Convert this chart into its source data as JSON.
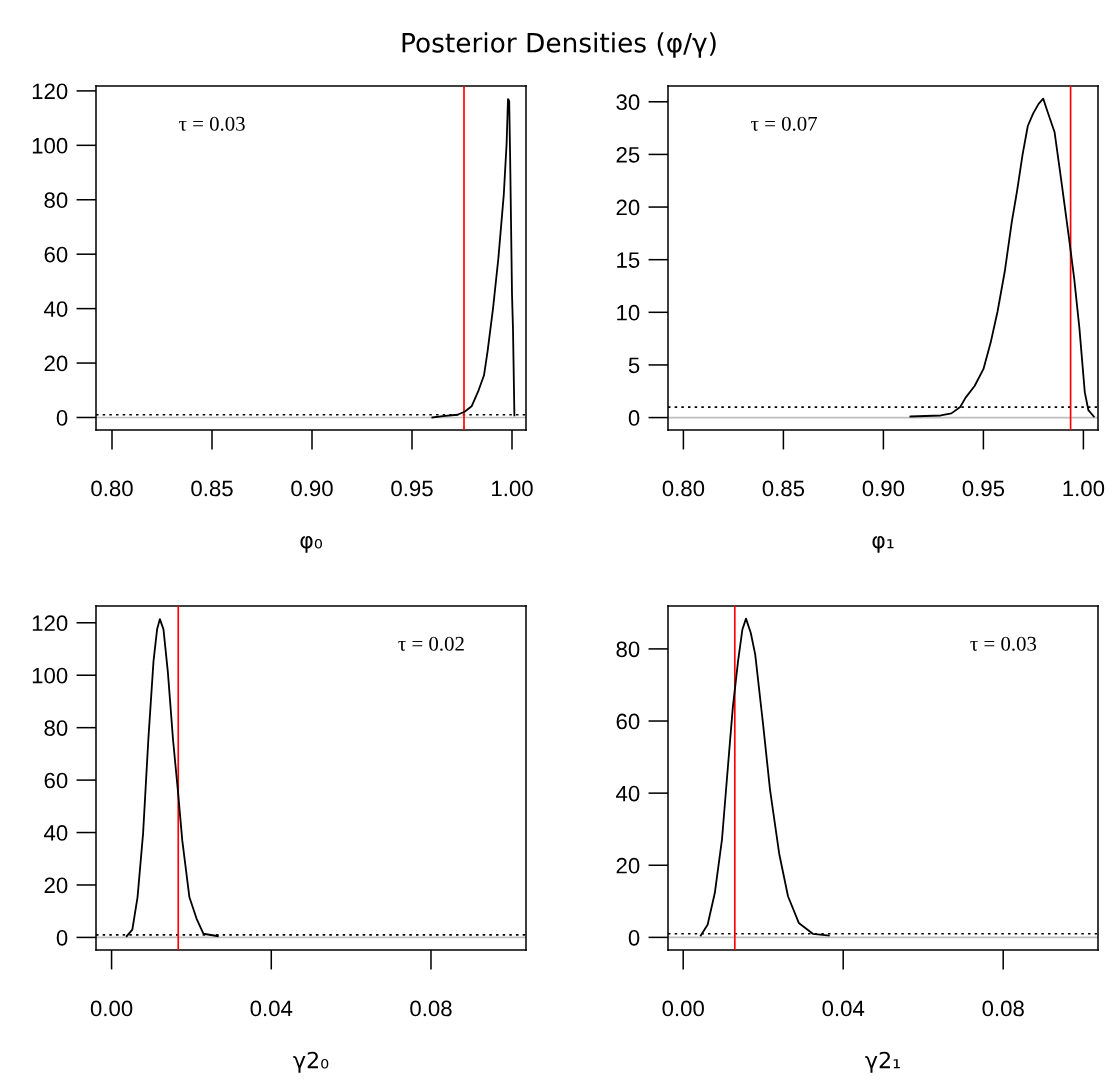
{
  "chart_data": [
    {
      "type": "line",
      "title": "Posterior Densities (φ/γ)",
      "xlabel": "φ₀",
      "annotations": [
        "τ = 0.03"
      ],
      "series": [
        {
          "color": "#000000",
          "x": [
            0.9602,
            0.9655,
            0.9727,
            0.9763,
            0.9798,
            0.9833,
            0.986,
            0.9878,
            0.9905,
            0.9932,
            0.9959,
            0.9973,
            0.998,
            0.9986,
            0.9991,
            1.0,
            1.0005,
            1.0012
          ],
          "values": [
            0,
            0.5,
            1.0,
            2.1,
            4.1,
            10,
            15.5,
            24.4,
            40,
            58.6,
            82,
            100.6,
            117,
            116.3,
            94,
            45.4,
            32.3,
            0.8
          ]
        }
      ],
      "xlim": [
        0.792,
        1.007
      ],
      "xticks": [
        {
          "value": 0.8,
          "label": "0.80"
        },
        0.85,
        {
          "value": 0.9,
          "label": "0.90"
        },
        0.95,
        {
          "value": 1.0,
          "label": "1.00"
        }
      ],
      "ylim": [
        -4.6,
        121.8
      ],
      "yticks": [
        0,
        20,
        40,
        60,
        80,
        100,
        120
      ],
      "ref_lines": [
        {
          "axis": "x",
          "value": 0.976,
          "color": "#ff0000",
          "line_style": "solid"
        },
        {
          "axis": "y",
          "value": 1,
          "color": "#000000",
          "line_style": "dotted"
        },
        {
          "axis": "y",
          "value": 0,
          "color": "#bebebe",
          "line_style": "solid"
        }
      ]
    },
    {
      "type": "line",
      "xlabel": "φ₁",
      "annotations": [
        "τ = 0.07"
      ],
      "series": [
        {
          "color": "#000000",
          "x": [
            0.9135,
            0.9287,
            0.934,
            0.9384,
            0.9411,
            0.9456,
            0.95,
            0.9536,
            0.9571,
            0.9607,
            0.9642,
            0.9669,
            0.9696,
            0.9722,
            0.9749,
            0.9776,
            0.9799,
            0.982,
            0.9856,
            0.9891,
            0.9927,
            0.9954,
            0.998,
            1.0007,
            1.0025,
            1.0052
          ],
          "values": [
            0.1,
            0.2,
            0.4,
            1.0,
            1.9,
            3.0,
            4.6,
            7.1,
            10.1,
            13.9,
            18.6,
            21.6,
            25.0,
            27.7,
            28.9,
            29.8,
            30.3,
            29.1,
            27.1,
            22.3,
            17.2,
            13.2,
            8.5,
            2.4,
            0.7,
            0.1
          ]
        }
      ],
      "xlim": [
        0.7923,
        1.0073
      ],
      "xticks": [
        {
          "value": 0.8,
          "label": "0.80"
        },
        0.85,
        {
          "value": 0.9,
          "label": "0.90"
        },
        0.95,
        {
          "value": 1.0,
          "label": "1.00"
        }
      ],
      "ylim": [
        -1.18,
        31.5
      ],
      "yticks": [
        0,
        5,
        10,
        15,
        20,
        25,
        30
      ],
      "ref_lines": [
        {
          "axis": "x",
          "value": 0.9936,
          "color": "#ff0000",
          "line_style": "solid"
        },
        {
          "axis": "y",
          "value": 1,
          "color": "#000000",
          "line_style": "dotted"
        },
        {
          "axis": "y",
          "value": 0,
          "color": "#bebebe",
          "line_style": "solid"
        }
      ]
    },
    {
      "type": "line",
      "xlabel": "γ2₀",
      "annotations": [
        "τ = 0.02"
      ],
      "series": [
        {
          "color": "#000000",
          "x": [
            0.0038,
            0.0052,
            0.0065,
            0.0079,
            0.0092,
            0.0105,
            0.0114,
            0.0121,
            0.013,
            0.0141,
            0.0154,
            0.0166,
            0.0177,
            0.0195,
            0.0213,
            0.023,
            0.0266
          ],
          "values": [
            0.5,
            3,
            15.3,
            39.8,
            75.3,
            105.3,
            117.5,
            121.4,
            117.5,
            101.2,
            75.3,
            56.2,
            37.1,
            15.3,
            7.1,
            1.4,
            0.5
          ]
        }
      ],
      "xlim": [
        -0.0039,
        0.1038
      ],
      "xticks": [
        {
          "value": 0.0,
          "label": "0.00"
        },
        0.04,
        0.08
      ],
      "ylim": [
        -4.8,
        126.4
      ],
      "yticks": [
        0,
        20,
        40,
        60,
        80,
        100,
        120
      ],
      "ref_lines": [
        {
          "axis": "x",
          "value": 0.0167,
          "color": "#ff0000",
          "line_style": "solid"
        },
        {
          "axis": "y",
          "value": 1,
          "color": "#000000",
          "line_style": "dotted"
        },
        {
          "axis": "y",
          "value": 0,
          "color": "#bebebe",
          "line_style": "solid"
        }
      ]
    },
    {
      "type": "line",
      "xlabel": "γ2₁",
      "annotations": [
        "τ = 0.03"
      ],
      "series": [
        {
          "color": "#000000",
          "x": [
            0.0044,
            0.0061,
            0.0079,
            0.0097,
            0.011,
            0.0124,
            0.0137,
            0.0148,
            0.0157,
            0.0169,
            0.018,
            0.02,
            0.0217,
            0.024,
            0.0262,
            0.0289,
            0.0324,
            0.0364
          ],
          "values": [
            0.5,
            3.5,
            12.3,
            27.2,
            44.9,
            63.7,
            76.5,
            85.4,
            88.4,
            84.4,
            78.5,
            58.8,
            41,
            23.2,
            11.4,
            4.0,
            1.0,
            0.5
          ]
        }
      ],
      "xlim": [
        -0.0038,
        0.1037
      ],
      "xticks": [
        {
          "value": 0.0,
          "label": "0.00"
        },
        0.04,
        0.08
      ],
      "ylim": [
        -3.5,
        91.9
      ],
      "yticks": [
        0,
        20,
        40,
        60,
        80
      ],
      "ref_lines": [
        {
          "axis": "x",
          "value": 0.0129,
          "color": "#ff0000",
          "line_style": "solid"
        },
        {
          "axis": "y",
          "value": 1,
          "color": "#000000",
          "line_style": "dotted"
        },
        {
          "axis": "y",
          "value": 0,
          "color": "#bebebe",
          "line_style": "solid"
        }
      ]
    }
  ]
}
